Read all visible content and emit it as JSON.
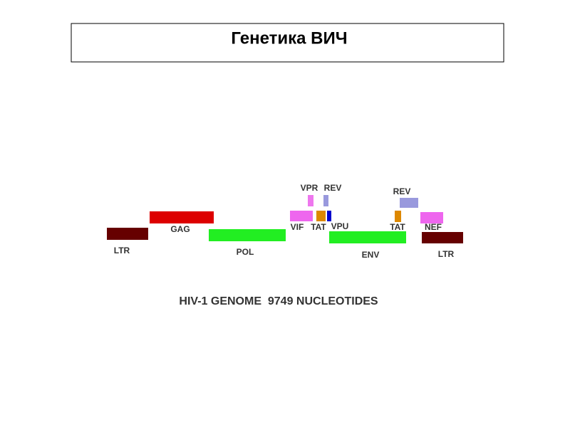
{
  "header": {
    "title": "Генетика ВИЧ"
  },
  "genes": [
    {
      "label": "LTR"
    },
    {
      "label": "GAG"
    },
    {
      "label": "POL"
    },
    {
      "label": "VIF"
    },
    {
      "label": "VPR"
    },
    {
      "label": "REV"
    },
    {
      "label": "TAT"
    },
    {
      "label": "VPU"
    },
    {
      "label": "ENV"
    },
    {
      "label": "REV"
    },
    {
      "label": "TAT"
    },
    {
      "label": "NEF"
    },
    {
      "label": "LTR"
    }
  ],
  "caption": "HIV-1 GENOME  9749 NUCLEOTIDES"
}
